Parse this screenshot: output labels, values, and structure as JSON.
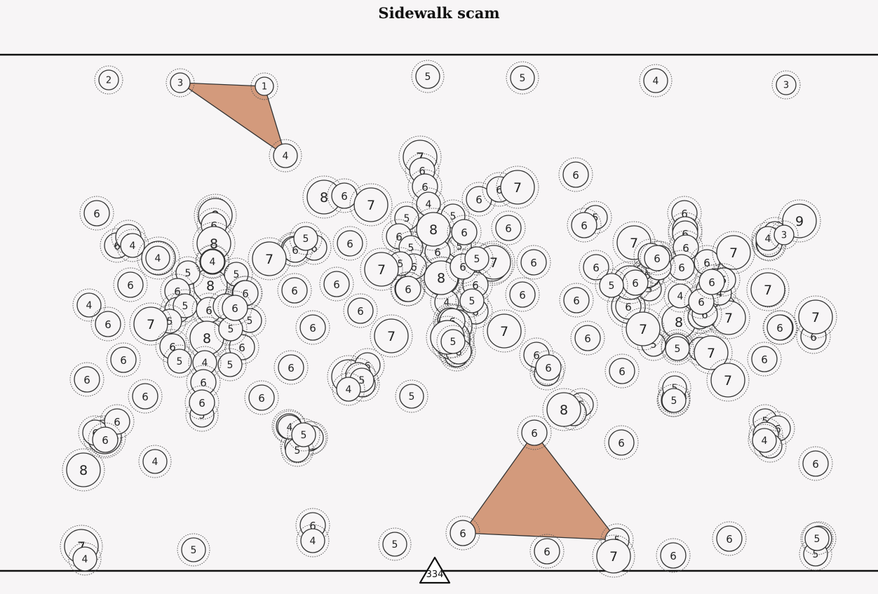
{
  "title": "Sidewalk scam",
  "counter": "334",
  "colors": {
    "background": "#f7f5f6",
    "triangle_fill": "#d39a7c",
    "stroke": "#333333"
  },
  "nodes": [
    {
      "v": "2"
    },
    {
      "v": "3"
    },
    {
      "v": "1"
    },
    {
      "v": "5"
    },
    {
      "v": "5"
    },
    {
      "v": "4"
    },
    {
      "v": "3"
    },
    {
      "v": "4"
    },
    {
      "v": "7"
    },
    {
      "v": "6"
    },
    {
      "v": "6"
    },
    {
      "v": "6"
    },
    {
      "v": "4"
    },
    {
      "v": "8"
    },
    {
      "v": "6"
    },
    {
      "v": "7"
    },
    {
      "v": "6"
    },
    {
      "v": "6"
    },
    {
      "v": "7"
    },
    {
      "v": "6"
    },
    {
      "v": "6"
    },
    {
      "v": "9"
    },
    {
      "v": "6"
    },
    {
      "v": "6"
    },
    {
      "v": "6"
    },
    {
      "v": "4"
    },
    {
      "v": "7"
    },
    {
      "v": "8"
    },
    {
      "v": "6"
    },
    {
      "v": "5"
    },
    {
      "v": "5"
    },
    {
      "v": "6"
    },
    {
      "v": "5"
    },
    {
      "v": "4"
    },
    {
      "v": "6"
    },
    {
      "v": "6"
    },
    {
      "v": "4"
    },
    {
      "v": "6"
    },
    {
      "v": "7"
    },
    {
      "v": "5"
    },
    {
      "v": "5"
    },
    {
      "v": "6"
    },
    {
      "v": "8"
    },
    {
      "v": "5"
    },
    {
      "v": "5"
    },
    {
      "v": "6"
    },
    {
      "v": "6"
    },
    {
      "v": "6"
    },
    {
      "v": "4"
    },
    {
      "v": "6"
    },
    {
      "v": "6"
    },
    {
      "v": "6"
    },
    {
      "v": "5"
    },
    {
      "v": "7"
    },
    {
      "v": "6"
    },
    {
      "v": "6"
    },
    {
      "v": "5"
    },
    {
      "v": "7"
    },
    {
      "v": "8"
    },
    {
      "v": "6"
    },
    {
      "v": "7"
    },
    {
      "v": "6"
    },
    {
      "v": "6"
    },
    {
      "v": "6"
    },
    {
      "v": "6"
    },
    {
      "v": "6"
    },
    {
      "v": "6"
    },
    {
      "v": "6"
    },
    {
      "v": "6"
    },
    {
      "v": "6"
    },
    {
      "v": "6"
    },
    {
      "v": "7"
    },
    {
      "v": "6"
    },
    {
      "v": "8"
    },
    {
      "v": "7"
    },
    {
      "v": "6"
    },
    {
      "v": "6"
    },
    {
      "v": "4"
    },
    {
      "v": "6"
    },
    {
      "v": "6"
    },
    {
      "v": "6"
    },
    {
      "v": "7"
    },
    {
      "v": "6"
    },
    {
      "v": "6"
    },
    {
      "v": "5"
    },
    {
      "v": "5"
    },
    {
      "v": "6"
    },
    {
      "v": "6"
    },
    {
      "v": "6"
    },
    {
      "v": "8"
    },
    {
      "v": "7"
    },
    {
      "v": "6"
    },
    {
      "v": "6"
    },
    {
      "v": "5"
    },
    {
      "v": "5"
    },
    {
      "v": "6"
    },
    {
      "v": "5"
    },
    {
      "v": "5"
    },
    {
      "v": "6"
    },
    {
      "v": "6"
    },
    {
      "v": "6"
    },
    {
      "v": "6"
    },
    {
      "v": "6"
    },
    {
      "v": "7"
    },
    {
      "v": "8"
    },
    {
      "v": "6"
    },
    {
      "v": "6"
    },
    {
      "v": "5"
    },
    {
      "v": "6"
    },
    {
      "v": "5"
    },
    {
      "v": "6"
    },
    {
      "v": "7"
    },
    {
      "v": "6"
    },
    {
      "v": "6"
    },
    {
      "v": "6"
    },
    {
      "v": "4"
    },
    {
      "v": "6"
    },
    {
      "v": "5"
    },
    {
      "v": "8"
    },
    {
      "v": "5"
    },
    {
      "v": "5"
    },
    {
      "v": "5"
    },
    {
      "v": "6"
    },
    {
      "v": "6"
    },
    {
      "v": "4"
    },
    {
      "v": "5"
    },
    {
      "v": "5"
    },
    {
      "v": "7"
    },
    {
      "v": "7"
    },
    {
      "v": "6"
    },
    {
      "v": "7"
    },
    {
      "v": "7"
    },
    {
      "v": "7"
    },
    {
      "v": "6"
    },
    {
      "v": "6"
    },
    {
      "v": "6"
    },
    {
      "v": "6"
    },
    {
      "v": "6"
    },
    {
      "v": "6"
    },
    {
      "v": "7"
    },
    {
      "v": "6"
    },
    {
      "v": "6"
    },
    {
      "v": "5"
    },
    {
      "v": "6"
    },
    {
      "v": "6"
    },
    {
      "v": "6"
    },
    {
      "v": "7"
    },
    {
      "v": "6"
    },
    {
      "v": "6"
    },
    {
      "v": "6"
    },
    {
      "v": "6"
    },
    {
      "v": "6"
    },
    {
      "v": "6"
    },
    {
      "v": "6"
    },
    {
      "v": "6"
    },
    {
      "v": "6"
    },
    {
      "v": "5"
    },
    {
      "v": "7"
    },
    {
      "v": "6"
    },
    {
      "v": "6"
    },
    {
      "v": "6"
    },
    {
      "v": "5"
    },
    {
      "v": "5"
    },
    {
      "v": "6"
    },
    {
      "v": "8"
    },
    {
      "v": "5"
    },
    {
      "v": "5"
    },
    {
      "v": "5"
    },
    {
      "v": "5"
    },
    {
      "v": "6"
    },
    {
      "v": "6"
    },
    {
      "v": "6"
    },
    {
      "v": "4"
    },
    {
      "v": "8"
    },
    {
      "v": "7"
    },
    {
      "v": "6"
    },
    {
      "v": "4"
    },
    {
      "v": "5"
    },
    {
      "v": "5"
    },
    {
      "v": "6"
    },
    {
      "v": "5"
    },
    {
      "v": "7"
    },
    {
      "v": "6"
    },
    {
      "v": "6"
    },
    {
      "v": "6"
    },
    {
      "v": "5"
    },
    {
      "v": "4"
    },
    {
      "v": "5"
    },
    {
      "v": "5"
    },
    {
      "v": "4"
    },
    {
      "v": "5"
    },
    {
      "v": "6"
    },
    {
      "v": "6"
    },
    {
      "v": "6"
    },
    {
      "v": "6"
    },
    {
      "v": "4"
    },
    {
      "v": "7"
    },
    {
      "v": "6"
    },
    {
      "v": "6"
    },
    {
      "v": "6"
    },
    {
      "v": "6"
    },
    {
      "v": "7"
    },
    {
      "v": "6"
    },
    {
      "v": "5"
    },
    {
      "v": "5"
    },
    {
      "v": "8"
    },
    {
      "v": "7"
    },
    {
      "v": "7"
    },
    {
      "v": "6"
    },
    {
      "v": "6"
    },
    {
      "v": "7"
    },
    {
      "v": "5"
    },
    {
      "v": "4"
    },
    {
      "v": "5"
    },
    {
      "v": "4"
    },
    {
      "v": "5"
    },
    {
      "v": "5"
    },
    {
      "v": "9"
    },
    {
      "v": "3"
    },
    {
      "v": "4"
    },
    {
      "v": "4"
    },
    {
      "v": "4"
    },
    {
      "v": "5"
    },
    {
      "v": "3"
    },
    {
      "v": "4"
    },
    {
      "v": "6"
    },
    {
      "v": "4"
    },
    {
      "v": "3"
    },
    {
      "v": "7"
    },
    {
      "v": "4"
    },
    {
      "v": "5"
    },
    {
      "v": "6"
    },
    {
      "v": "6"
    },
    {
      "v": "5"
    },
    {
      "v": "5"
    },
    {
      "v": "2"
    },
    {
      "v": "4"
    }
  ]
}
